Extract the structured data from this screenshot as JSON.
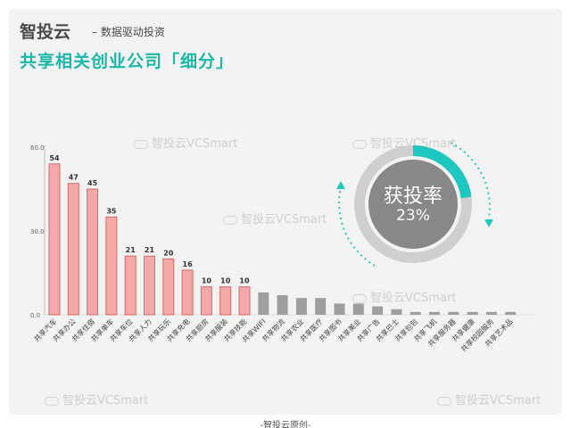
{
  "header": {
    "brand": "智投云",
    "tagline": "– 数据驱动投资",
    "subtitle": "共享相关创业公司「细分」"
  },
  "watermark_text": "智投云VCSmart",
  "footer": "-智投云原创-",
  "bubble": {
    "label": "获投率",
    "value": "23%",
    "fraction": 0.23
  },
  "colors": {
    "highlight": "#f4a9a9",
    "highlight_border": "#d46a6a",
    "muted": "#9e9e9e",
    "accent": "#1ec8c0"
  },
  "chart_data": {
    "type": "bar",
    "y_ticks": [
      "0.0",
      "30.0",
      "60.0"
    ],
    "ylim": [
      0,
      60
    ],
    "categories": [
      "共享汽车",
      "共享办公",
      "共享住宿",
      "共享单车",
      "共享车位",
      "共享人力",
      "共享玩乐",
      "共享充电",
      "共享厨房",
      "共享服装",
      "共享技能",
      "共享WIFI",
      "共享物流",
      "共享农业",
      "共享医疗",
      "共享图书",
      "共享美业",
      "共享广告",
      "共享巴士",
      "共享包包",
      "共享飞机",
      "共享服务器",
      "共享健康",
      "共享校园服务",
      "共享艺术品"
    ],
    "values": [
      54,
      47,
      45,
      35,
      21,
      21,
      20,
      16,
      10,
      10,
      10,
      8,
      7,
      6,
      6,
      4,
      4,
      3,
      2,
      1,
      1,
      1,
      1,
      1,
      1
    ],
    "labels": [
      "54",
      "47",
      "45",
      "35",
      "21",
      "21",
      "20",
      "16",
      "10",
      "10",
      "10",
      "",
      "",
      "",
      "",
      "",
      "",
      "",
      "",
      "",
      "",
      "",
      "",
      "",
      ""
    ],
    "highlight_count": 11
  }
}
